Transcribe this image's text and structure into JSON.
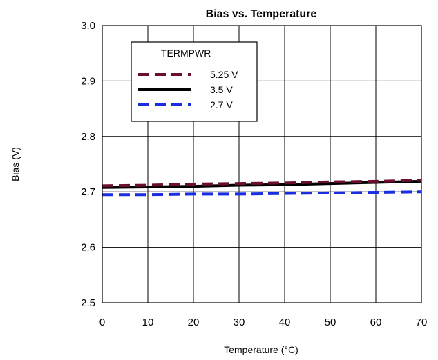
{
  "chart_data": {
    "type": "line",
    "title": "Bias vs. Temperature",
    "xlabel": "Temperature (°C)",
    "ylabel": "Bias (V)",
    "xlim": [
      0,
      70
    ],
    "ylim": [
      2.5,
      3.0
    ],
    "x_ticks": [
      "0",
      "10",
      "20",
      "30",
      "40",
      "50",
      "60",
      "70"
    ],
    "y_ticks": [
      "2.5",
      "2.6",
      "2.7",
      "2.8",
      "2.9",
      "3.0"
    ],
    "grid": true,
    "legend": {
      "title": "TERMPWR",
      "placement": "top-left"
    },
    "x": [
      0,
      10,
      20,
      30,
      40,
      50,
      60,
      70
    ],
    "series": [
      {
        "name": "5.25 V",
        "color": "#6b0f2a",
        "dash": "dashed",
        "values": [
          2.711,
          2.712,
          2.714,
          2.715,
          2.716,
          2.718,
          2.719,
          2.721
        ]
      },
      {
        "name": "3.5 V",
        "color": "#000000",
        "dash": "solid",
        "values": [
          2.708,
          2.709,
          2.71,
          2.712,
          2.713,
          2.715,
          2.717,
          2.719
        ]
      },
      {
        "name": "2.7 V",
        "color": "#1a2ee0",
        "dash": "dashed",
        "values": [
          2.695,
          2.695,
          2.696,
          2.696,
          2.697,
          2.698,
          2.699,
          2.7
        ]
      }
    ]
  }
}
